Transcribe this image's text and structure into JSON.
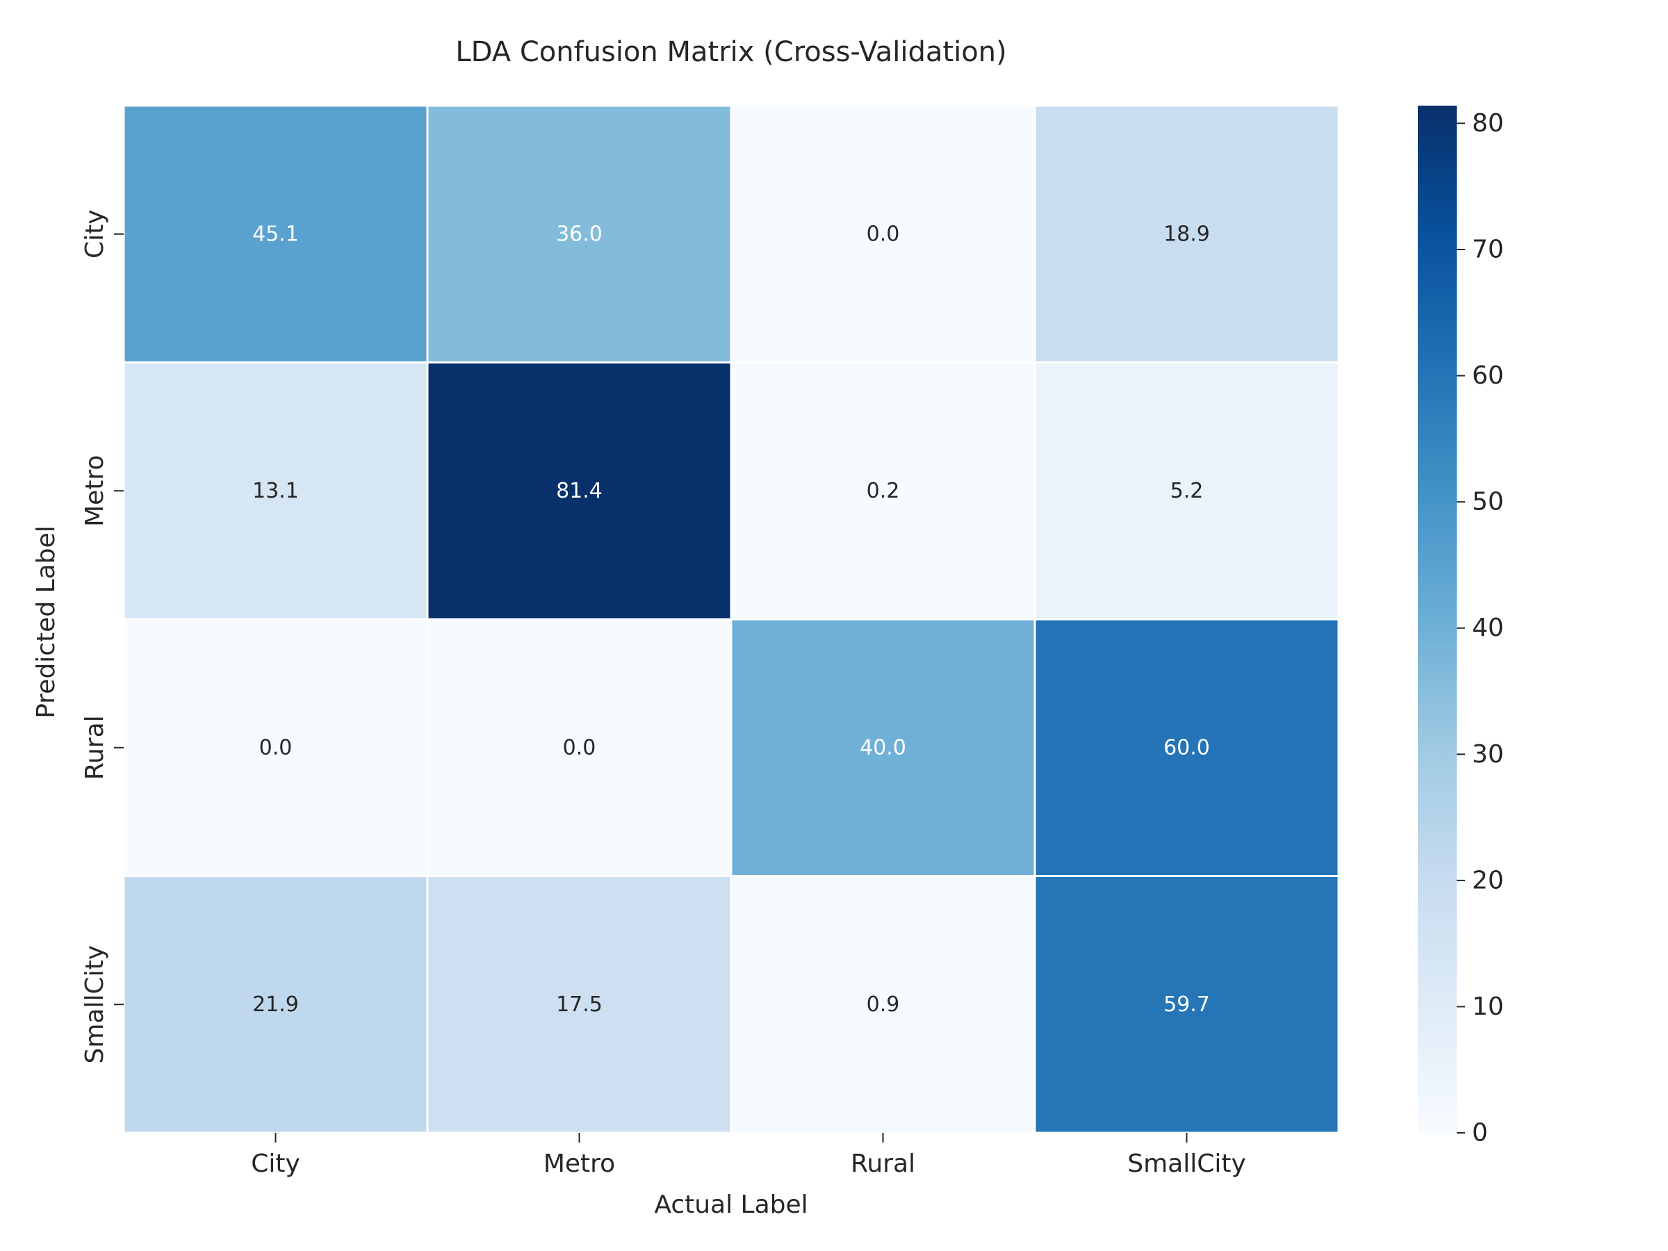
{
  "chart_data": {
    "type": "heatmap",
    "title": "LDA Confusion Matrix (Cross-Validation)",
    "xlabel": "Actual Label",
    "ylabel": "Predicted Label",
    "x_categories": [
      "City",
      "Metro",
      "Rural",
      "SmallCity"
    ],
    "y_categories": [
      "City",
      "Metro",
      "Rural",
      "SmallCity"
    ],
    "values": [
      [
        45.1,
        36.0,
        0.0,
        18.9
      ],
      [
        13.1,
        81.4,
        0.2,
        5.2
      ],
      [
        0.0,
        0.0,
        40.0,
        60.0
      ],
      [
        21.9,
        17.5,
        0.9,
        59.7
      ]
    ],
    "value_labels": [
      [
        "45.1",
        "36.0",
        "0.0",
        "18.9"
      ],
      [
        "13.1",
        "81.4",
        "0.2",
        "5.2"
      ],
      [
        "0.0",
        "0.0",
        "40.0",
        "60.0"
      ],
      [
        "21.9",
        "17.5",
        "0.9",
        "59.7"
      ]
    ],
    "colorbar": {
      "range": [
        0,
        81.4
      ],
      "ticks": [
        0,
        10,
        20,
        30,
        40,
        50,
        60,
        70,
        80
      ],
      "tick_labels": [
        "0",
        "10",
        "20",
        "30",
        "40",
        "50",
        "60",
        "70",
        "80"
      ]
    },
    "colormap": "Blues",
    "colors": {
      "low": "#f7fbff",
      "high": "#08306b",
      "text_dark": "#262626",
      "text_light": "#ffffff",
      "cell_border": "#ffffff"
    }
  }
}
